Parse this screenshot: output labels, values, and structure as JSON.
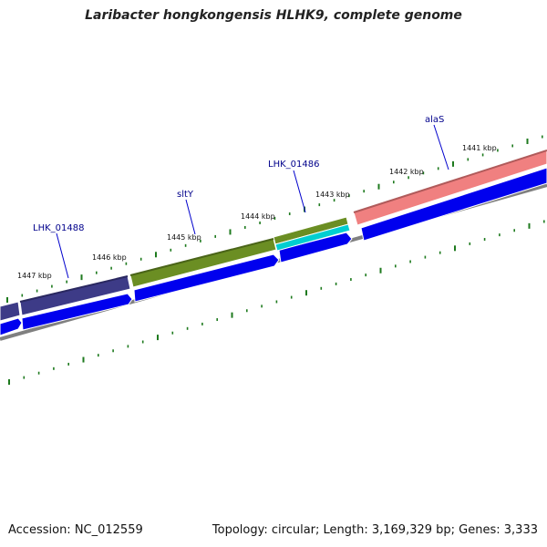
{
  "title": "Laribacter hongkongensis HLHK9, complete genome",
  "footer": {
    "accession": "Accession: NC_012559",
    "summary": "Topology: circular; Length: 3,169,329 bp; Genes: 3,333"
  },
  "colors": {
    "forward_cds": "#0000ee",
    "tick": "#1e7a1e",
    "gene_label": "#00008b",
    "backbone": "#808080",
    "genes": {
      "LHK_01488": "#3d3b87",
      "sltY": "#6b8e23",
      "LHK_01486_top": "#6b8e23",
      "LHK_01486_bottom": "#00ced1",
      "alaS": "#f08080"
    }
  },
  "scale_labels": [
    "1441 kbp",
    "1442 kbp",
    "1443 kbp",
    "1444 kbp",
    "1445 kbp",
    "1446 kbp",
    "1447 kbp"
  ],
  "gene_labels": [
    "alaS",
    "LHK_01486",
    "sltY",
    "LHK_01488"
  ]
}
